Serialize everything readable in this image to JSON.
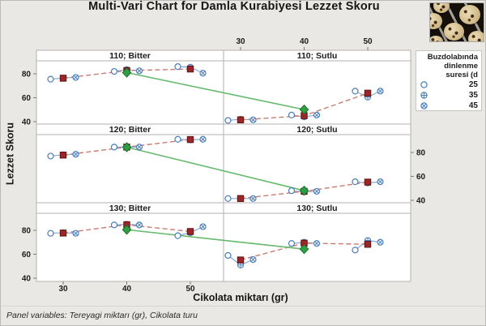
{
  "title": "Multi-Vari Chart for Damla Kurabiyesi Lezzet Skoru",
  "footnote": "Panel variables: Tereyagi miktarı (gr), Cikolata turu",
  "legend": {
    "title_lines": [
      "Buzdolabında",
      "dinlenme",
      "suresi (d"
    ],
    "items": [
      {
        "label": "25",
        "marker": "open-circle"
      },
      {
        "label": "35",
        "marker": "circle-plus"
      },
      {
        "label": "45",
        "marker": "circle-cross"
      }
    ]
  },
  "chart_data": {
    "type": "multi-vari-line",
    "title": "Multi-Vari Chart for Damla Kurabiyesi Lezzet Skoru",
    "xlabel": "Cikolata miktarı (gr)",
    "ylabel": "Lezzet Skoru",
    "x_ticks": [
      30,
      40,
      50
    ],
    "y_ticks": [
      40,
      60,
      80
    ],
    "ylim": [
      36,
      94
    ],
    "series_levels": [
      "25",
      "35",
      "45"
    ],
    "panel_grid": {
      "rows": [
        "110",
        "120",
        "130"
      ],
      "cols": [
        "Bitter",
        "Sutlu"
      ]
    },
    "panels": [
      {
        "label": "110; Bitter",
        "row": "110",
        "col": "Bitter",
        "cells": [
          [
            75.5,
            76.5,
            77
          ],
          [
            82,
            83.5,
            82.5
          ],
          [
            86,
            85.5,
            80.5
          ]
        ],
        "x_means": [
          76.3,
          82.7,
          84.0
        ],
        "panel_mean": 81.0
      },
      {
        "label": "110; Sutlu",
        "row": "110",
        "col": "Sutlu",
        "cells": [
          [
            41,
            42,
            41.5
          ],
          [
            45.5,
            44,
            45.5
          ],
          [
            65.5,
            60.5,
            65.5
          ]
        ],
        "x_means": [
          41.5,
          45.0,
          63.8
        ],
        "panel_mean": 50.1
      },
      {
        "label": "120; Bitter",
        "row": "120",
        "col": "Bitter",
        "cells": [
          [
            77,
            78,
            78.5
          ],
          [
            84.5,
            84.5,
            84.5
          ],
          [
            91,
            90.5,
            91
          ]
        ],
        "x_means": [
          77.8,
          84.5,
          90.8
        ],
        "panel_mean": 84.4
      },
      {
        "label": "120; Sutlu",
        "row": "120",
        "col": "Sutlu",
        "cells": [
          [
            41.5,
            41.5,
            41.5
          ],
          [
            48,
            47,
            47.5
          ],
          [
            55.5,
            54.5,
            55.5
          ]
        ],
        "x_means": [
          41.5,
          47.5,
          55.2
        ],
        "panel_mean": 48.1
      },
      {
        "label": "130; Bitter",
        "row": "130",
        "col": "Bitter",
        "cells": [
          [
            77.5,
            78,
            77.5
          ],
          [
            84.5,
            85,
            84.5
          ],
          [
            75.5,
            78,
            83
          ]
        ],
        "x_means": [
          77.7,
          84.7,
          79.0
        ],
        "panel_mean": 80.5
      },
      {
        "label": "130; Sutlu",
        "row": "130",
        "col": "Sutlu",
        "cells": [
          [
            59,
            51,
            55.5
          ],
          [
            69,
            70,
            69
          ],
          [
            63.5,
            71.5,
            70
          ]
        ],
        "x_means": [
          55.2,
          69.3,
          68.3
        ],
        "panel_mean": 64.3
      }
    ],
    "colors": {
      "point_blue": "#4a7ebb",
      "point_line_blue": "#88aad6",
      "mean_square_red": "#9c2626",
      "mean_square_border": "#5f1212",
      "mean_dash_red": "#c87b70",
      "panel_mean_green": "#2f9e44",
      "panel_mean_border": "#1a732c",
      "panel_line_green": "#66b96d",
      "panel_bg": "#ffffff",
      "panel_border": "#b3b2af",
      "text": "#1c1c1c"
    },
    "legend_title": "Buzdolabında dinlenme suresi (d"
  }
}
